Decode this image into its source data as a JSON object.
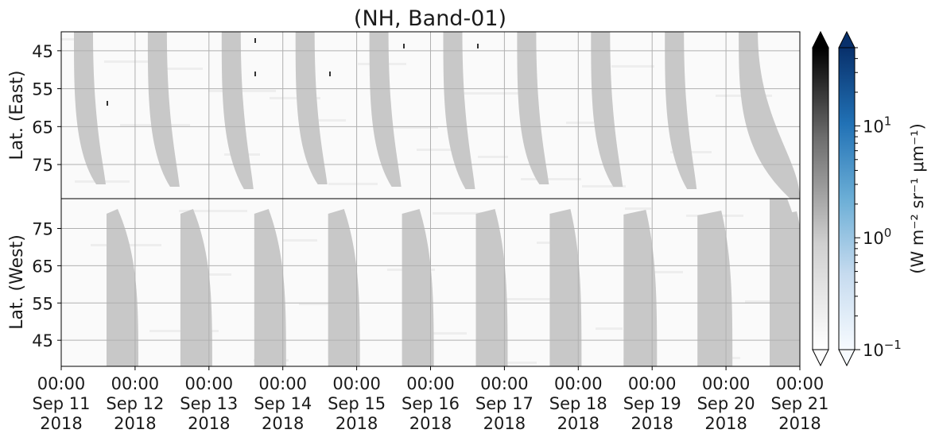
{
  "chart_data": {
    "type": "heatmap",
    "title": "(NH, Band-01)",
    "panels": [
      {
        "name": "east",
        "ylabel": "Lat. (East)",
        "yticks": [
          45,
          55,
          65,
          75
        ],
        "ylim": [
          40,
          84
        ],
        "orientation": "latitude increases downward"
      },
      {
        "name": "west",
        "ylabel": "Lat. (West)",
        "yticks": [
          75,
          65,
          55,
          45
        ],
        "ylim": [
          38,
          83
        ],
        "orientation": "latitude increases upward"
      }
    ],
    "x_tick_labels": [
      {
        "time": "00:00",
        "date": "Sep 11",
        "year": "2018"
      },
      {
        "time": "00:00",
        "date": "Sep 12",
        "year": "2018"
      },
      {
        "time": "00:00",
        "date": "Sep 13",
        "year": "2018"
      },
      {
        "time": "00:00",
        "date": "Sep 14",
        "year": "2018"
      },
      {
        "time": "00:00",
        "date": "Sep 15",
        "year": "2018"
      },
      {
        "time": "00:00",
        "date": "Sep 16",
        "year": "2018"
      },
      {
        "time": "00:00",
        "date": "Sep 17",
        "year": "2018"
      },
      {
        "time": "00:00",
        "date": "Sep 18",
        "year": "2018"
      },
      {
        "time": "00:00",
        "date": "Sep 19",
        "year": "2018"
      },
      {
        "time": "00:00",
        "date": "Sep 20",
        "year": "2018"
      },
      {
        "time": "00:00",
        "date": "Sep 21",
        "year": "2018"
      }
    ],
    "colorbars": [
      {
        "name": "gray",
        "colors": [
          "#ffffff",
          "#000000"
        ],
        "extend": "both"
      },
      {
        "name": "blue",
        "colors": [
          "#f7fbff",
          "#08306b"
        ],
        "extend": "both",
        "scale": "log"
      }
    ],
    "colorbar_ticks": [
      {
        "label": "10",
        "exp": "1",
        "value": 10
      },
      {
        "label": "10",
        "exp": "0",
        "value": 1
      },
      {
        "label": "10",
        "exp": "−1",
        "value": 0.1
      }
    ],
    "colorbar_range": [
      0.1,
      50
    ],
    "colorbar_label": "(W m⁻² sr⁻¹ μm⁻¹)",
    "grid": true,
    "daylight_color": "#c8c8c8"
  }
}
